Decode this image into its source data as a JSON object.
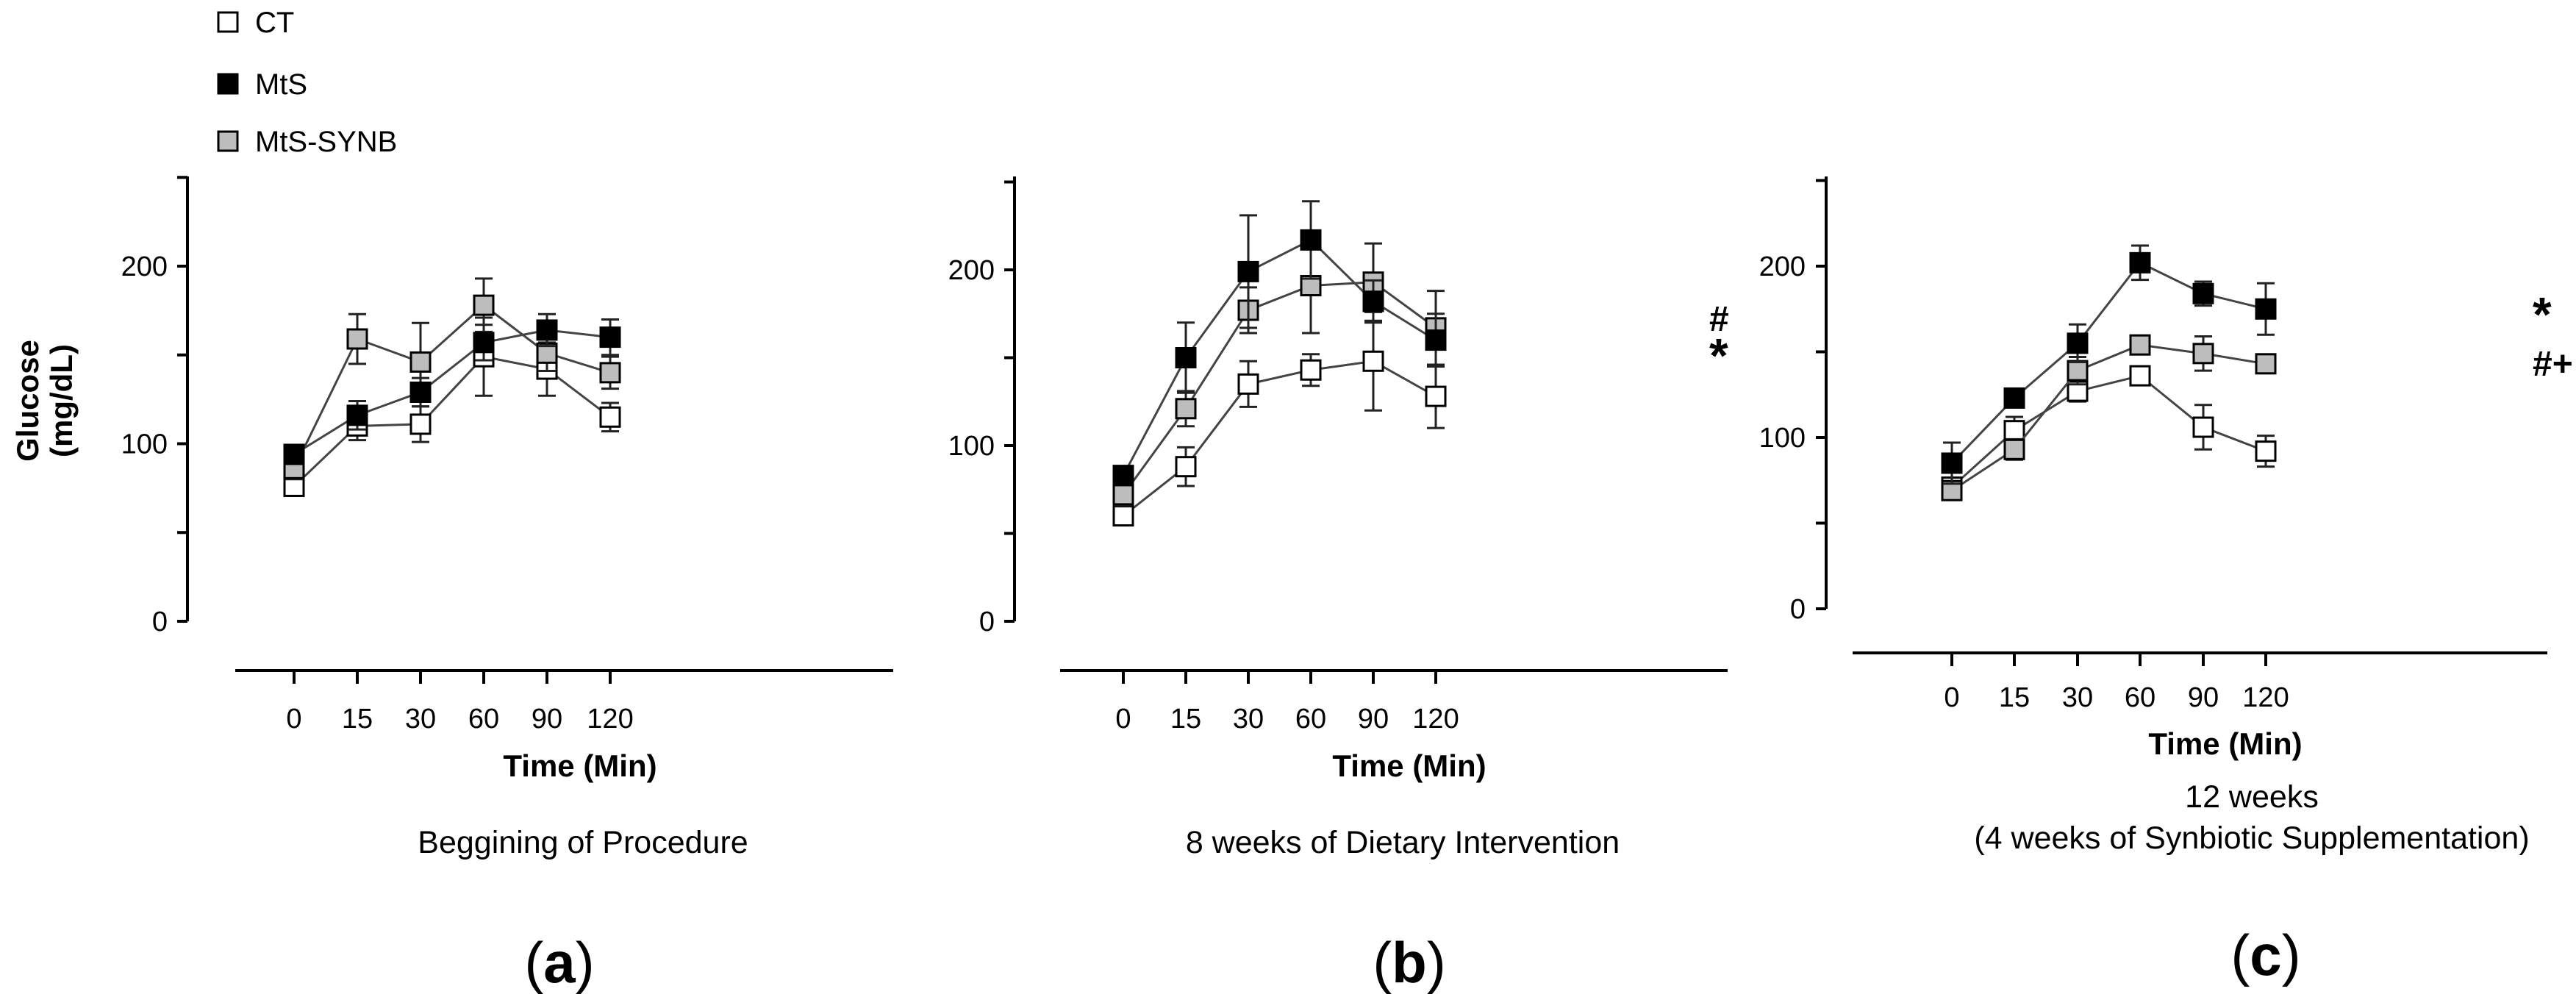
{
  "legend": [
    {
      "key": "CT",
      "label": "CT",
      "fill": "#ffffff"
    },
    {
      "key": "MtS",
      "label": "MtS",
      "fill": "#000000"
    },
    {
      "key": "MtS-SYNB",
      "label": "MtS-SYNB",
      "fill": "#bdbdbd"
    }
  ],
  "ylabel_line1": "Glucose",
  "ylabel_line2": "(mg/dL)",
  "chart_data": [
    {
      "type": "line",
      "panel_label": "a",
      "caption": [
        "Beggining of Procedure"
      ],
      "xlabel": "Time (Min)",
      "ylabel": "Glucose (mg/dL)",
      "categories": [
        "0",
        "15",
        "30",
        "60",
        "90",
        "120"
      ],
      "ylim": [
        0,
        250
      ],
      "yticks": [
        0,
        100,
        200
      ],
      "series": [
        {
          "name": "CT",
          "values": [
            76,
            110,
            111,
            149,
            142,
            115
          ],
          "errors": [
            5,
            8,
            10,
            22,
            15,
            8
          ]
        },
        {
          "name": "MtS",
          "values": [
            94,
            116,
            129,
            157,
            164,
            160
          ],
          "errors": [
            5,
            8,
            8,
            10,
            9,
            10
          ]
        },
        {
          "name": "MtS-SYNB",
          "values": [
            86,
            159,
            146,
            178,
            151,
            140
          ],
          "errors": [
            6,
            14,
            22,
            15,
            10,
            9
          ]
        }
      ],
      "annotations": []
    },
    {
      "type": "line",
      "panel_label": "b",
      "caption": [
        "8 weeks of Dietary Intervention"
      ],
      "xlabel": "Time (Min)",
      "ylabel": "Glucose (mg/dL)",
      "categories": [
        "0",
        "15",
        "30",
        "60",
        "90",
        "120"
      ],
      "ylim": [
        0,
        250
      ],
      "yticks": [
        0,
        100,
        200
      ],
      "series": [
        {
          "name": "CT",
          "values": [
            60,
            88,
            135,
            143,
            148,
            128
          ],
          "errors": [
            4,
            11,
            13,
            9,
            28,
            18
          ]
        },
        {
          "name": "MtS",
          "values": [
            83,
            150,
            199,
            217,
            182,
            160
          ],
          "errors": [
            5,
            20,
            32,
            22,
            12,
            15
          ]
        },
        {
          "name": "MtS-SYNB",
          "values": [
            72,
            121,
            177,
            191,
            193,
            167
          ],
          "errors": [
            6,
            10,
            13,
            27,
            22,
            21
          ]
        }
      ],
      "annotations": [
        {
          "text": "#",
          "series": "MtS-SYNB"
        },
        {
          "text": "*",
          "series": "MtS"
        }
      ]
    },
    {
      "type": "line",
      "panel_label": "c",
      "caption": [
        "12 weeks",
        "(4 weeks of Synbiotic Supplementation)"
      ],
      "xlabel": "Time (Min)",
      "ylabel": "Glucose (mg/dL)",
      "categories": [
        "0",
        "15",
        "30",
        "60",
        "90",
        "120"
      ],
      "ylim": [
        0,
        250
      ],
      "yticks": [
        0,
        100,
        200
      ],
      "series": [
        {
          "name": "CT",
          "values": [
            71,
            104,
            127,
            136,
            106,
            92
          ],
          "errors": [
            5,
            8,
            6,
            5,
            13,
            9
          ]
        },
        {
          "name": "MtS",
          "values": [
            85,
            123,
            155,
            202,
            184,
            175
          ],
          "errors": [
            12,
            5,
            11,
            10,
            7,
            15
          ]
        },
        {
          "name": "MtS-SYNB",
          "values": [
            69,
            93,
            139,
            154,
            149,
            143
          ],
          "errors": [
            4,
            6,
            8,
            5,
            10,
            5
          ]
        }
      ],
      "annotations": [
        {
          "text": "*",
          "series": "MtS"
        },
        {
          "text": "#+",
          "series": "MtS-SYNB"
        }
      ]
    }
  ]
}
